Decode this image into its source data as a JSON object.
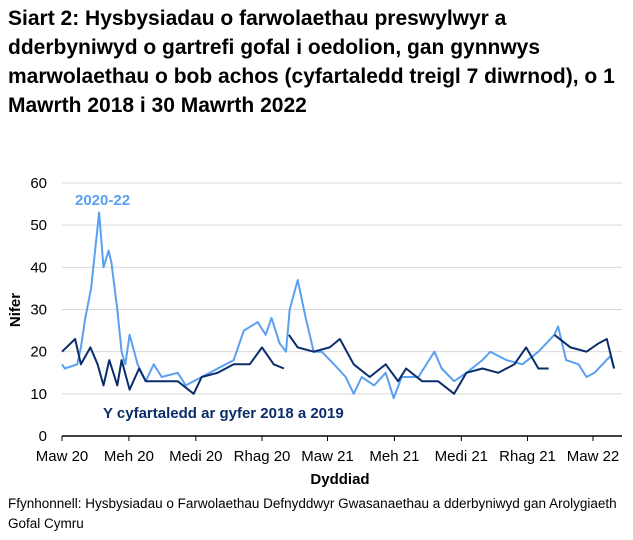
{
  "title": "Siart 2: Hysbysiadau o farwolaethau preswylwyr a dderbyniwyd o gartrefi gofal i oedolion, gan gynnwys marwolaethau o bob achos (cyfartaledd treigl 7 diwrnod), o 1 Mawrth 2018 i 30 Mawrth 2022",
  "source": "Ffynhonnell: Hysbysiadau o Farwolaethau Defnyddwyr Gwasanaethau a dderbyniwyd gan Arolygiaeth Gofal Cymru",
  "chart_data": {
    "type": "line",
    "xlabel": "Dyddiad",
    "ylabel": "Nifer",
    "ylim": [
      0,
      60
    ],
    "yticks": [
      "0",
      "10",
      "20",
      "30",
      "40",
      "50",
      "60"
    ],
    "xticks": [
      {
        "label": "Maw 20",
        "date": "2020-03-01"
      },
      {
        "label": "Meh 20",
        "date": "2020-06-01"
      },
      {
        "label": "Medi 20",
        "date": "2020-09-01"
      },
      {
        "label": "Rhag 20",
        "date": "2020-12-01"
      },
      {
        "label": "Maw 21",
        "date": "2021-03-01"
      },
      {
        "label": "Meh 21",
        "date": "2021-06-01"
      },
      {
        "label": "Medi 21",
        "date": "2021-09-01"
      },
      {
        "label": "Rhag 21",
        "date": "2021-12-01"
      },
      {
        "label": "Maw 22",
        "date": "2022-03-01"
      }
    ],
    "grid": "horizontal",
    "series": [
      {
        "name": "2020-22",
        "color": "#5aa0f0",
        "points": [
          [
            "2020-03-01",
            17
          ],
          [
            "2020-03-05",
            16
          ],
          [
            "2020-03-22",
            17
          ],
          [
            "2020-03-27",
            21
          ],
          [
            "2020-04-02",
            28
          ],
          [
            "2020-04-10",
            35
          ],
          [
            "2020-04-18",
            48
          ],
          [
            "2020-04-21",
            53
          ],
          [
            "2020-04-27",
            40
          ],
          [
            "2020-05-04",
            44
          ],
          [
            "2020-05-08",
            41
          ],
          [
            "2020-05-16",
            30
          ],
          [
            "2020-05-22",
            20
          ],
          [
            "2020-05-27",
            17
          ],
          [
            "2020-06-02",
            24
          ],
          [
            "2020-06-13",
            17
          ],
          [
            "2020-06-24",
            13
          ],
          [
            "2020-07-05",
            17
          ],
          [
            "2020-07-16",
            14
          ],
          [
            "2020-08-07",
            15
          ],
          [
            "2020-08-18",
            12
          ],
          [
            "2020-09-09",
            14
          ],
          [
            "2020-10-01",
            16
          ],
          [
            "2020-10-23",
            18
          ],
          [
            "2020-11-06",
            25
          ],
          [
            "2020-11-25",
            27
          ],
          [
            "2020-12-06",
            24
          ],
          [
            "2020-12-14",
            28
          ],
          [
            "2020-12-25",
            22
          ],
          [
            "2021-01-03",
            20
          ],
          [
            "2021-01-08",
            30
          ],
          [
            "2021-01-19",
            37
          ],
          [
            "2021-01-30",
            28
          ],
          [
            "2021-02-10",
            20
          ],
          [
            "2021-02-21",
            20
          ],
          [
            "2021-03-10",
            17
          ],
          [
            "2021-03-26",
            14
          ],
          [
            "2021-04-06",
            10
          ],
          [
            "2021-04-17",
            14
          ],
          [
            "2021-05-04",
            12
          ],
          [
            "2021-05-20",
            15
          ],
          [
            "2021-05-31",
            9
          ],
          [
            "2021-06-11",
            14
          ],
          [
            "2021-07-04",
            14
          ],
          [
            "2021-07-26",
            20
          ],
          [
            "2021-08-05",
            16
          ],
          [
            "2021-08-22",
            13
          ],
          [
            "2021-09-08",
            15
          ],
          [
            "2021-09-30",
            18
          ],
          [
            "2021-10-11",
            20
          ],
          [
            "2021-11-02",
            18
          ],
          [
            "2021-11-24",
            17
          ],
          [
            "2021-12-16",
            20
          ],
          [
            "2022-01-07",
            24
          ],
          [
            "2022-01-12",
            26
          ],
          [
            "2022-01-23",
            18
          ],
          [
            "2022-02-09",
            17
          ],
          [
            "2022-02-20",
            14
          ],
          [
            "2022-03-03",
            15
          ],
          [
            "2022-03-14",
            17
          ],
          [
            "2022-03-25",
            19
          ],
          [
            "2022-03-30",
            16
          ]
        ]
      },
      {
        "name": "Y cyfartaledd ar gyfer 2018 a 2019",
        "color": "#0b2d6b",
        "points": [
          [
            "2020-03-01",
            20
          ],
          [
            "2020-03-19",
            23
          ],
          [
            "2020-03-27",
            17
          ],
          [
            "2020-04-09",
            21
          ],
          [
            "2020-04-19",
            17
          ],
          [
            "2020-04-27",
            12
          ],
          [
            "2020-05-05",
            18
          ],
          [
            "2020-05-16",
            12
          ],
          [
            "2020-05-22",
            18
          ],
          [
            "2020-06-02",
            11
          ],
          [
            "2020-06-15",
            16
          ],
          [
            "2020-06-24",
            13
          ],
          [
            "2020-07-16",
            13
          ],
          [
            "2020-08-07",
            13
          ],
          [
            "2020-08-29",
            10
          ],
          [
            "2020-09-09",
            14
          ],
          [
            "2020-10-01",
            15
          ],
          [
            "2020-10-23",
            17
          ],
          [
            "2020-11-14",
            17
          ],
          [
            "2020-12-01",
            21
          ],
          [
            "2020-12-17",
            17
          ],
          [
            "2020-12-31",
            16
          ],
          [
            "break",
            null
          ],
          [
            "2021-01-07",
            24
          ],
          [
            "2021-01-19",
            21
          ],
          [
            "2021-02-10",
            20
          ],
          [
            "2021-03-04",
            21
          ],
          [
            "2021-03-18",
            23
          ],
          [
            "2021-04-06",
            17
          ],
          [
            "2021-04-28",
            14
          ],
          [
            "2021-05-20",
            17
          ],
          [
            "2021-06-06",
            13
          ],
          [
            "2021-06-17",
            16
          ],
          [
            "2021-07-09",
            13
          ],
          [
            "2021-07-31",
            13
          ],
          [
            "2021-08-22",
            10
          ],
          [
            "2021-09-08",
            15
          ],
          [
            "2021-09-30",
            16
          ],
          [
            "2021-10-22",
            15
          ],
          [
            "2021-11-13",
            17
          ],
          [
            "2021-11-29",
            21
          ],
          [
            "2021-12-16",
            16
          ],
          [
            "2021-12-30",
            16
          ],
          [
            "break",
            null
          ],
          [
            "2022-01-07",
            24
          ],
          [
            "2022-01-29",
            21
          ],
          [
            "2022-02-20",
            20
          ],
          [
            "2022-03-09",
            22
          ],
          [
            "2022-03-20",
            23
          ],
          [
            "2022-03-30",
            16
          ]
        ]
      }
    ]
  }
}
